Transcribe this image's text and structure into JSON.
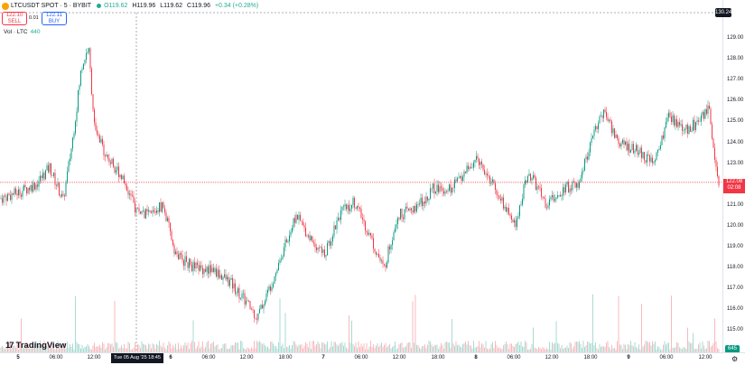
{
  "header": {
    "symbol": "LTCUSDT SPOT · 5 · BYBIT",
    "ohlc": {
      "o": "O119.62",
      "h": "H119.96",
      "l": "L119.62",
      "c": "C119.96",
      "chg": "+0.34 (+0.28%)"
    }
  },
  "trade": {
    "sell_price": "122.10",
    "sell_label": "SELL",
    "spread": "0.01",
    "buy_price": "122.11",
    "buy_label": "BUY"
  },
  "volume_label": {
    "name": "Vol · LTC",
    "value": "440"
  },
  "price_axis": {
    "ticks": [
      "129.00",
      "128.00",
      "127.00",
      "126.00",
      "125.00",
      "124.00",
      "123.00",
      "122.00",
      "121.00",
      "120.00",
      "119.00",
      "118.00",
      "117.00",
      "116.00",
      "115.00"
    ],
    "top_badge": "130.24",
    "last_price": "122.08",
    "last_countdown": "02:08",
    "volume_badge": "645"
  },
  "time_axis": {
    "ticks": [
      "5",
      "06:00",
      "12:00",
      "6",
      "06:00",
      "12:00",
      "18:00",
      "7",
      "06:00",
      "12:00",
      "18:00",
      "8",
      "06:00",
      "12:00",
      "18:00",
      "9",
      "06:00",
      "12:00"
    ],
    "crosshair_label": "Tue 05 Aug '25   18:45"
  },
  "branding": {
    "name": "TradingView",
    "mark": "17"
  },
  "colors": {
    "up": "#089981",
    "down": "#f23645",
    "accent": "#2962ff"
  },
  "chart_data": {
    "type": "candlestick",
    "symbol": "LTCUSDT",
    "interval": "5",
    "exchange": "BYBIT",
    "ylim": [
      115,
      130
    ],
    "last": 122.08,
    "approx_close_path": [
      [
        0,
        121.3
      ],
      [
        20,
        121.6
      ],
      [
        40,
        122.0
      ],
      [
        55,
        122.8
      ],
      [
        70,
        121.2
      ],
      [
        80,
        124.0
      ],
      [
        90,
        127.5
      ],
      [
        98,
        128.6
      ],
      [
        105,
        124.5
      ],
      [
        120,
        123.2
      ],
      [
        135,
        122.4
      ],
      [
        150,
        120.8
      ],
      [
        165,
        120.5
      ],
      [
        180,
        121.0
      ],
      [
        195,
        118.6
      ],
      [
        215,
        118.0
      ],
      [
        235,
        117.9
      ],
      [
        255,
        117.3
      ],
      [
        270,
        116.5
      ],
      [
        285,
        115.6
      ],
      [
        300,
        117.2
      ],
      [
        315,
        119.0
      ],
      [
        328,
        120.5
      ],
      [
        342,
        119.5
      ],
      [
        360,
        118.6
      ],
      [
        375,
        120.5
      ],
      [
        392,
        121.2
      ],
      [
        410,
        119.5
      ],
      [
        425,
        117.9
      ],
      [
        440,
        120.5
      ],
      [
        460,
        120.8
      ],
      [
        480,
        121.8
      ],
      [
        500,
        121.8
      ],
      [
        515,
        122.6
      ],
      [
        530,
        123.2
      ],
      [
        548,
        121.8
      ],
      [
        570,
        120.0
      ],
      [
        585,
        122.6
      ],
      [
        605,
        121.0
      ],
      [
        625,
        121.8
      ],
      [
        640,
        122.0
      ],
      [
        655,
        124.0
      ],
      [
        668,
        125.5
      ],
      [
        685,
        124.0
      ],
      [
        705,
        123.6
      ],
      [
        725,
        123.0
      ],
      [
        740,
        125.2
      ],
      [
        760,
        124.6
      ],
      [
        775,
        125.0
      ],
      [
        785,
        125.6
      ],
      [
        792,
        122.8
      ],
      [
        796,
        122.08
      ]
    ]
  }
}
